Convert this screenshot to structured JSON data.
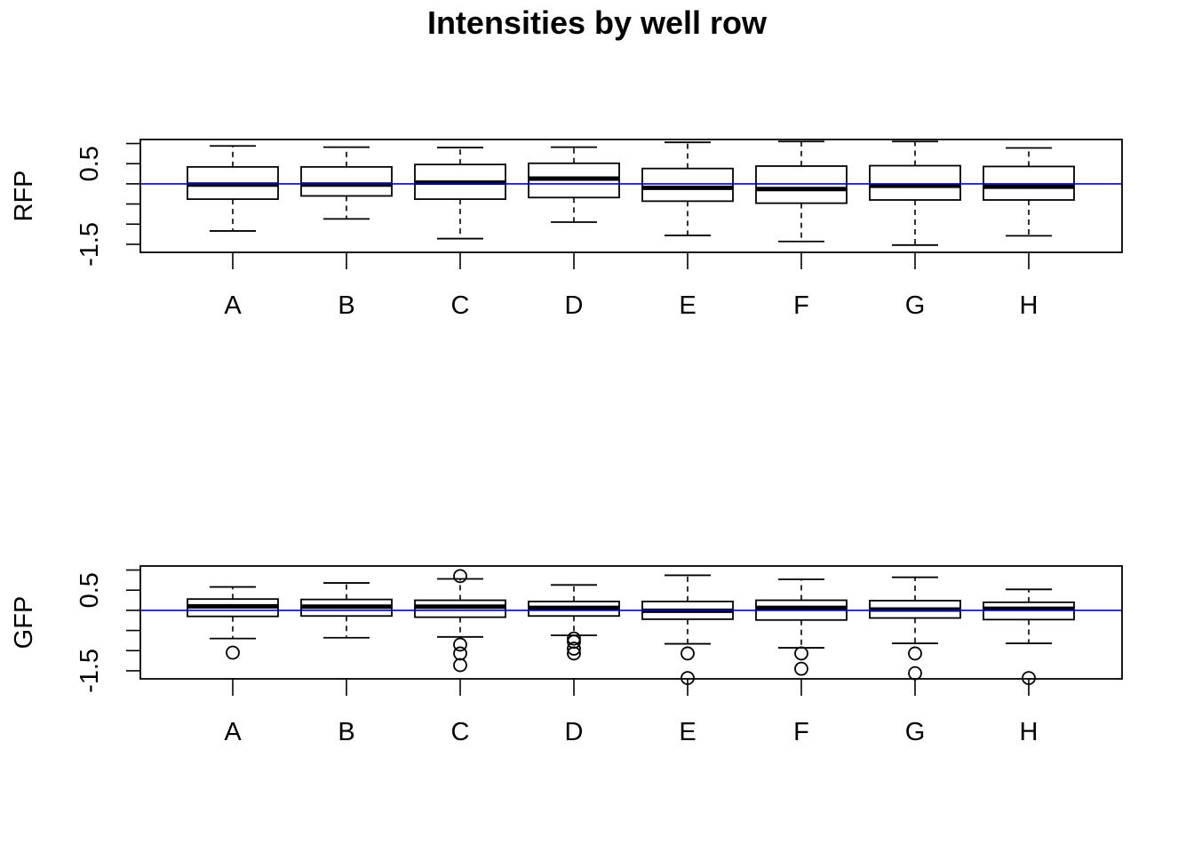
{
  "chart_data": {
    "type": "boxplot",
    "title": "Intensities by well row",
    "categories": [
      "A",
      "B",
      "C",
      "D",
      "E",
      "F",
      "G",
      "H"
    ],
    "reference_line": {
      "y": 0,
      "color": "#0000cc"
    },
    "panels": [
      {
        "ylabel": "RFP",
        "ylim": [
          -1.7,
          1.1
        ],
        "yticks": [
          -1.5,
          -1,
          -0.5,
          0,
          0.5,
          1
        ],
        "ytick_labels": [
          "-1.5",
          "",
          "",
          "",
          "0.5",
          ""
        ],
        "boxes": [
          {
            "category": "A",
            "whisker_low": -1.17,
            "q1": -0.38,
            "median": -0.02,
            "q3": 0.42,
            "whisker_high": 0.94,
            "outliers": []
          },
          {
            "category": "B",
            "whisker_low": -0.87,
            "q1": -0.3,
            "median": -0.02,
            "q3": 0.42,
            "whisker_high": 0.91,
            "outliers": []
          },
          {
            "category": "C",
            "whisker_low": -1.36,
            "q1": -0.38,
            "median": 0.03,
            "q3": 0.48,
            "whisker_high": 0.9,
            "outliers": []
          },
          {
            "category": "D",
            "whisker_low": -0.95,
            "q1": -0.34,
            "median": 0.13,
            "q3": 0.51,
            "whisker_high": 0.91,
            "outliers": []
          },
          {
            "category": "E",
            "whisker_low": -1.28,
            "q1": -0.43,
            "median": -0.1,
            "q3": 0.38,
            "whisker_high": 1.03,
            "outliers": []
          },
          {
            "category": "F",
            "whisker_low": -1.43,
            "q1": -0.48,
            "median": -0.13,
            "q3": 0.44,
            "whisker_high": 1.05,
            "outliers": []
          },
          {
            "category": "G",
            "whisker_low": -1.52,
            "q1": -0.4,
            "median": -0.05,
            "q3": 0.45,
            "whisker_high": 1.05,
            "outliers": []
          },
          {
            "category": "H",
            "whisker_low": -1.29,
            "q1": -0.4,
            "median": -0.07,
            "q3": 0.43,
            "whisker_high": 0.89,
            "outliers": []
          }
        ]
      },
      {
        "ylabel": "GFP",
        "ylim": [
          -1.7,
          1.1
        ],
        "yticks": [
          -1.5,
          -1,
          -0.5,
          0,
          0.5,
          1
        ],
        "ytick_labels": [
          "-1.5",
          "",
          "",
          "",
          "0.5",
          ""
        ],
        "boxes": [
          {
            "category": "A",
            "whisker_low": -0.7,
            "q1": -0.15,
            "median": 0.1,
            "q3": 0.28,
            "whisker_high": 0.58,
            "outliers": [
              -1.05
            ]
          },
          {
            "category": "B",
            "whisker_low": -0.68,
            "q1": -0.14,
            "median": 0.09,
            "q3": 0.27,
            "whisker_high": 0.68,
            "outliers": []
          },
          {
            "category": "C",
            "whisker_low": -0.66,
            "q1": -0.17,
            "median": 0.09,
            "q3": 0.25,
            "whisker_high": 0.78,
            "outliers": [
              -0.85,
              -1.07,
              -1.36,
              0.85
            ]
          },
          {
            "category": "D",
            "whisker_low": -0.62,
            "q1": -0.14,
            "median": 0.06,
            "q3": 0.22,
            "whisker_high": 0.63,
            "outliers": [
              -0.7,
              -0.78,
              -0.95,
              -1.07
            ]
          },
          {
            "category": "E",
            "whisker_low": -0.83,
            "q1": -0.22,
            "median": -0.01,
            "q3": 0.22,
            "whisker_high": 0.87,
            "outliers": [
              -1.07,
              -1.68
            ]
          },
          {
            "category": "F",
            "whisker_low": -0.93,
            "q1": -0.24,
            "median": 0.06,
            "q3": 0.25,
            "whisker_high": 0.77,
            "outliers": [
              -1.07,
              -1.45
            ]
          },
          {
            "category": "G",
            "whisker_low": -0.82,
            "q1": -0.19,
            "median": 0.02,
            "q3": 0.24,
            "whisker_high": 0.82,
            "outliers": [
              -1.07,
              -1.56
            ]
          },
          {
            "category": "H",
            "whisker_low": -0.82,
            "q1": -0.23,
            "median": 0.04,
            "q3": 0.2,
            "whisker_high": 0.52,
            "outliers": [
              -1.68
            ]
          }
        ]
      }
    ]
  }
}
